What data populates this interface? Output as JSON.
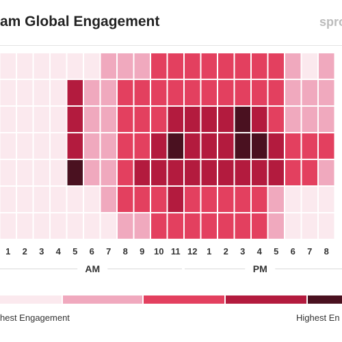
{
  "header": {
    "title": "am Global Engagement",
    "brand": "spro"
  },
  "colors": {
    "levels": [
      "#fbe9ee",
      "#f0a9be",
      "#e3405f",
      "#b31b3e",
      "#4a1120"
    ],
    "grid_line": "#ffffff",
    "divider": "#d6d6d6"
  },
  "chart_data": {
    "type": "heatmap",
    "title": "am Global Engagement",
    "x": [
      "1",
      "2",
      "3",
      "4",
      "5",
      "6",
      "7",
      "8",
      "9",
      "10",
      "11",
      "12",
      "1",
      "2",
      "3",
      "4",
      "5",
      "6",
      "7",
      "8"
    ],
    "x_groups": [
      {
        "label": "AM",
        "span": [
          0,
          10
        ]
      },
      {
        "label": "PM",
        "span": [
          11,
          19
        ]
      }
    ],
    "levels": 5,
    "rows": [
      [
        0,
        0,
        0,
        0,
        0,
        0,
        1,
        1,
        1,
        2,
        2,
        2,
        2,
        2,
        2,
        2,
        2,
        1,
        0,
        1
      ],
      [
        0,
        0,
        0,
        0,
        3,
        1,
        1,
        2,
        2,
        2,
        2,
        2,
        2,
        2,
        2,
        2,
        2,
        1,
        1,
        1
      ],
      [
        0,
        0,
        0,
        0,
        3,
        1,
        1,
        2,
        2,
        2,
        3,
        3,
        3,
        3,
        4,
        3,
        2,
        1,
        1,
        1
      ],
      [
        0,
        0,
        0,
        0,
        3,
        1,
        1,
        2,
        2,
        3,
        4,
        3,
        3,
        3,
        4,
        4,
        3,
        2,
        2,
        2
      ],
      [
        0,
        0,
        0,
        0,
        4,
        1,
        1,
        2,
        3,
        3,
        3,
        3,
        3,
        3,
        3,
        3,
        3,
        2,
        2,
        1
      ],
      [
        0,
        0,
        0,
        0,
        0,
        0,
        1,
        2,
        2,
        2,
        3,
        2,
        2,
        2,
        2,
        2,
        1,
        0,
        0,
        0
      ],
      [
        0,
        0,
        0,
        0,
        0,
        0,
        0,
        1,
        1,
        2,
        2,
        2,
        2,
        2,
        2,
        2,
        1,
        0,
        0,
        0
      ]
    ],
    "legend": {
      "low_label": "hest Engagement",
      "high_label": "Highest En"
    }
  }
}
